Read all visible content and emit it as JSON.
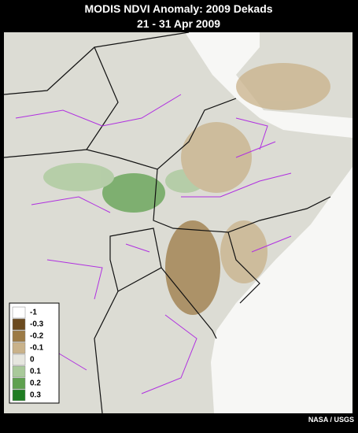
{
  "header": {
    "title": "MODIS NDVI Anomaly: 2009 Dekads",
    "subtitle": "21 - 31 Apr 2009"
  },
  "legend": {
    "items": [
      {
        "label": "-1",
        "color": "#ffffff"
      },
      {
        "label": "-0.3",
        "color": "#6b4a1e"
      },
      {
        "label": "-0.2",
        "color": "#9c7a45"
      },
      {
        "label": "-0.1",
        "color": "#c9b28a"
      },
      {
        "label": "0",
        "color": "#e6e6df"
      },
      {
        "label": "0.1",
        "color": "#a9c99a"
      },
      {
        "label": "0.2",
        "color": "#5fa14f"
      },
      {
        "label": "0.3",
        "color": "#1f7d22"
      }
    ]
  },
  "credit": "NASA / USGS"
}
